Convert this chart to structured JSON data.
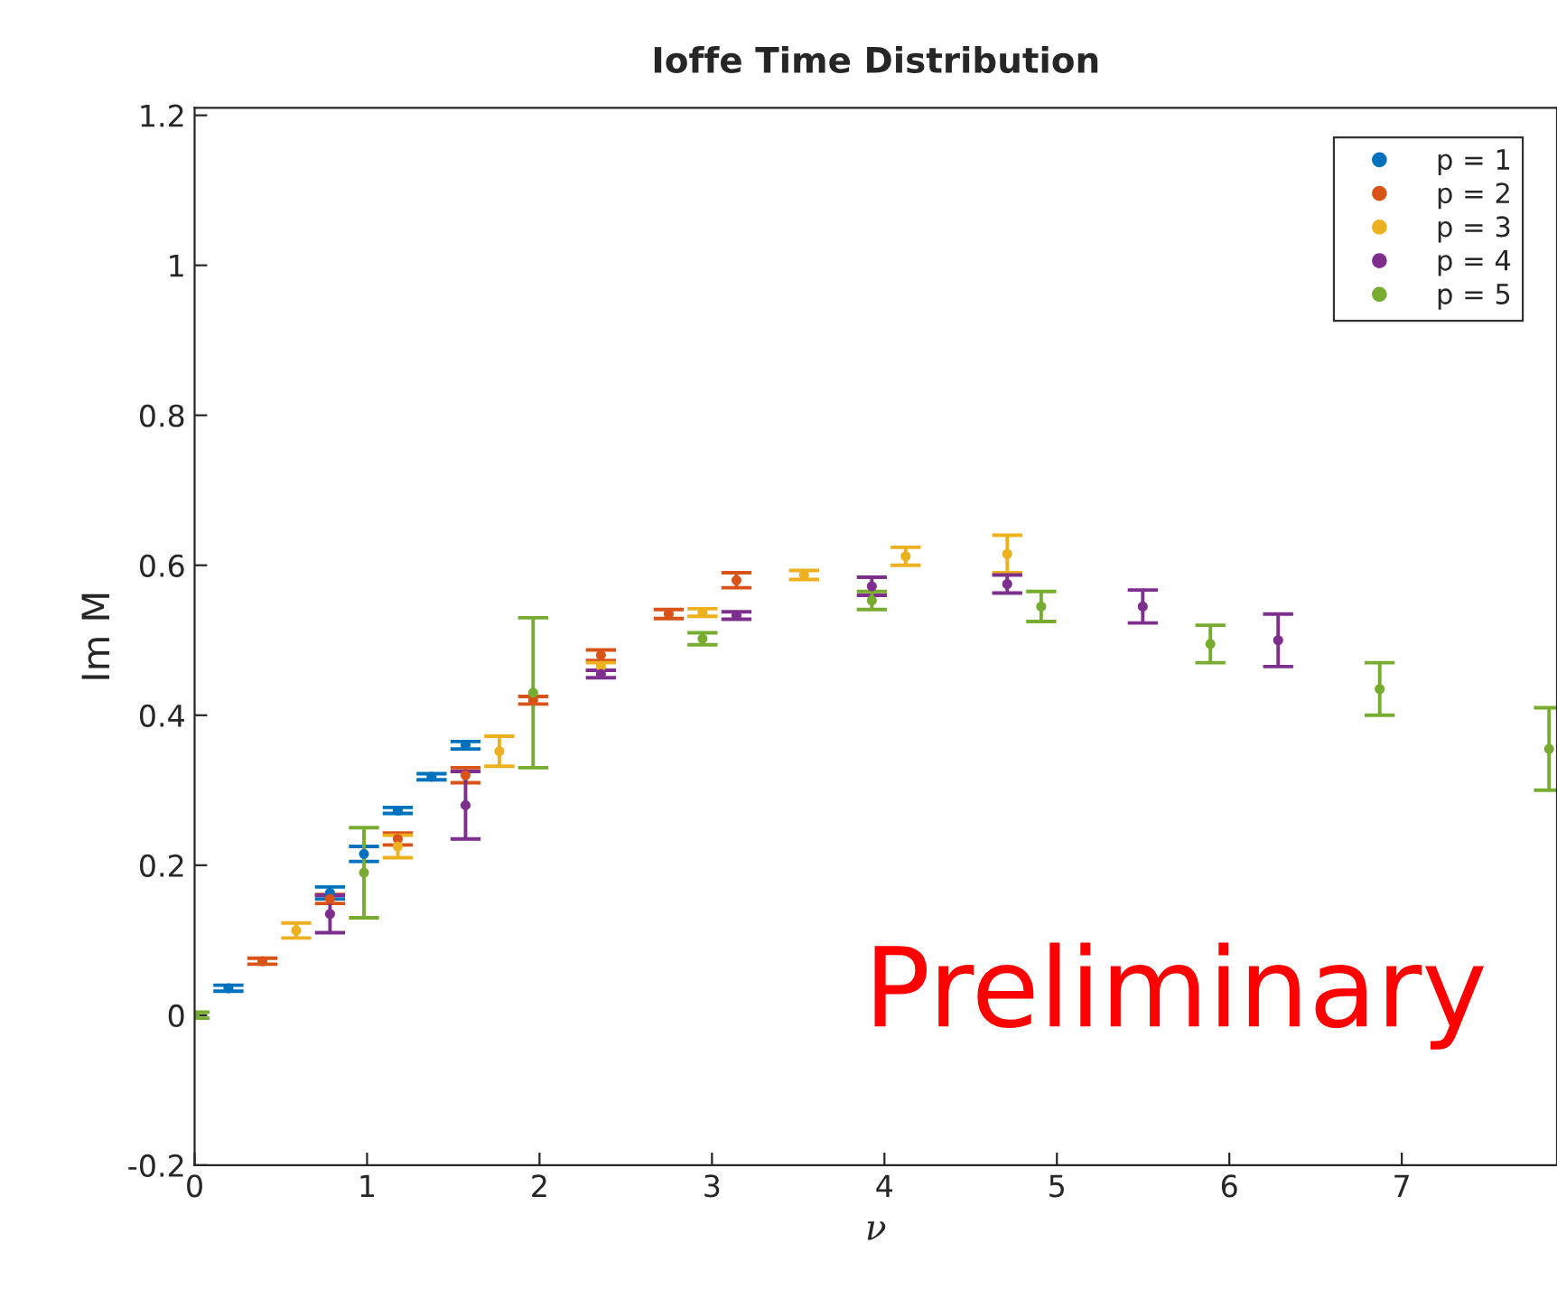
{
  "chart_data": {
    "type": "scatter",
    "title": "Ioffe Time Distribution",
    "xlabel": "ν",
    "ylabel": "Im M",
    "xlim": [
      0,
      7.9
    ],
    "xticks": [
      0,
      1,
      2,
      3,
      4,
      5,
      6,
      7
    ],
    "ylim": [
      -0.2,
      1.21
    ],
    "yticks": [
      -0.2,
      0,
      0.2,
      0.4,
      0.6,
      0.8,
      1,
      1.2
    ],
    "grid": false,
    "legend": "top right",
    "marker": "circle",
    "annotations": [
      "Preliminary"
    ],
    "series": [
      {
        "name": "p = 1",
        "color": "#0072bd",
        "x": [
          0.196,
          0.785,
          0.982,
          1.178,
          1.374,
          1.571
        ],
        "values": [
          0.036,
          0.163,
          0.215,
          0.273,
          0.318,
          0.36
        ],
        "errors": [
          0.004,
          0.008,
          0.01,
          0.004,
          0.004,
          0.005
        ]
      },
      {
        "name": "p = 2",
        "color": "#d95319",
        "x": [
          0.393,
          0.785,
          1.178,
          1.571,
          1.963,
          2.356,
          2.749,
          3.142
        ],
        "values": [
          0.072,
          0.155,
          0.235,
          0.32,
          0.42,
          0.48,
          0.535,
          0.58
        ],
        "errors": [
          0.004,
          0.006,
          0.008,
          0.01,
          0.005,
          0.007,
          0.006,
          0.01
        ]
      },
      {
        "name": "p = 3",
        "color": "#edb120",
        "x": [
          0.589,
          1.178,
          1.767,
          2.356,
          2.945,
          3.534,
          4.123,
          4.712
        ],
        "values": [
          0.113,
          0.225,
          0.352,
          0.465,
          0.537,
          0.587,
          0.612,
          0.615
        ],
        "errors": [
          0.01,
          0.015,
          0.02,
          0.005,
          0.005,
          0.006,
          0.012,
          0.025
        ]
      },
      {
        "name": "p = 4",
        "color": "#7e2f8e",
        "x": [
          0.785,
          1.571,
          2.356,
          3.142,
          3.927,
          4.712,
          5.498,
          6.283
        ],
        "values": [
          0.135,
          0.28,
          0.455,
          0.533,
          0.572,
          0.575,
          0.545,
          0.5
        ],
        "errors": [
          0.025,
          0.045,
          0.005,
          0.005,
          0.012,
          0.012,
          0.022,
          0.035
        ]
      },
      {
        "name": "p = 5",
        "color": "#77ac30",
        "x": [
          0,
          0.982,
          1.963,
          2.945,
          3.927,
          4.909,
          5.89,
          6.872,
          7.854
        ],
        "values": [
          0,
          0.19,
          0.43,
          0.502,
          0.553,
          0.545,
          0.495,
          0.435,
          0.355
        ],
        "errors": [
          0.004,
          0.06,
          0.1,
          0.008,
          0.012,
          0.02,
          0.025,
          0.035,
          0.055
        ]
      }
    ]
  }
}
